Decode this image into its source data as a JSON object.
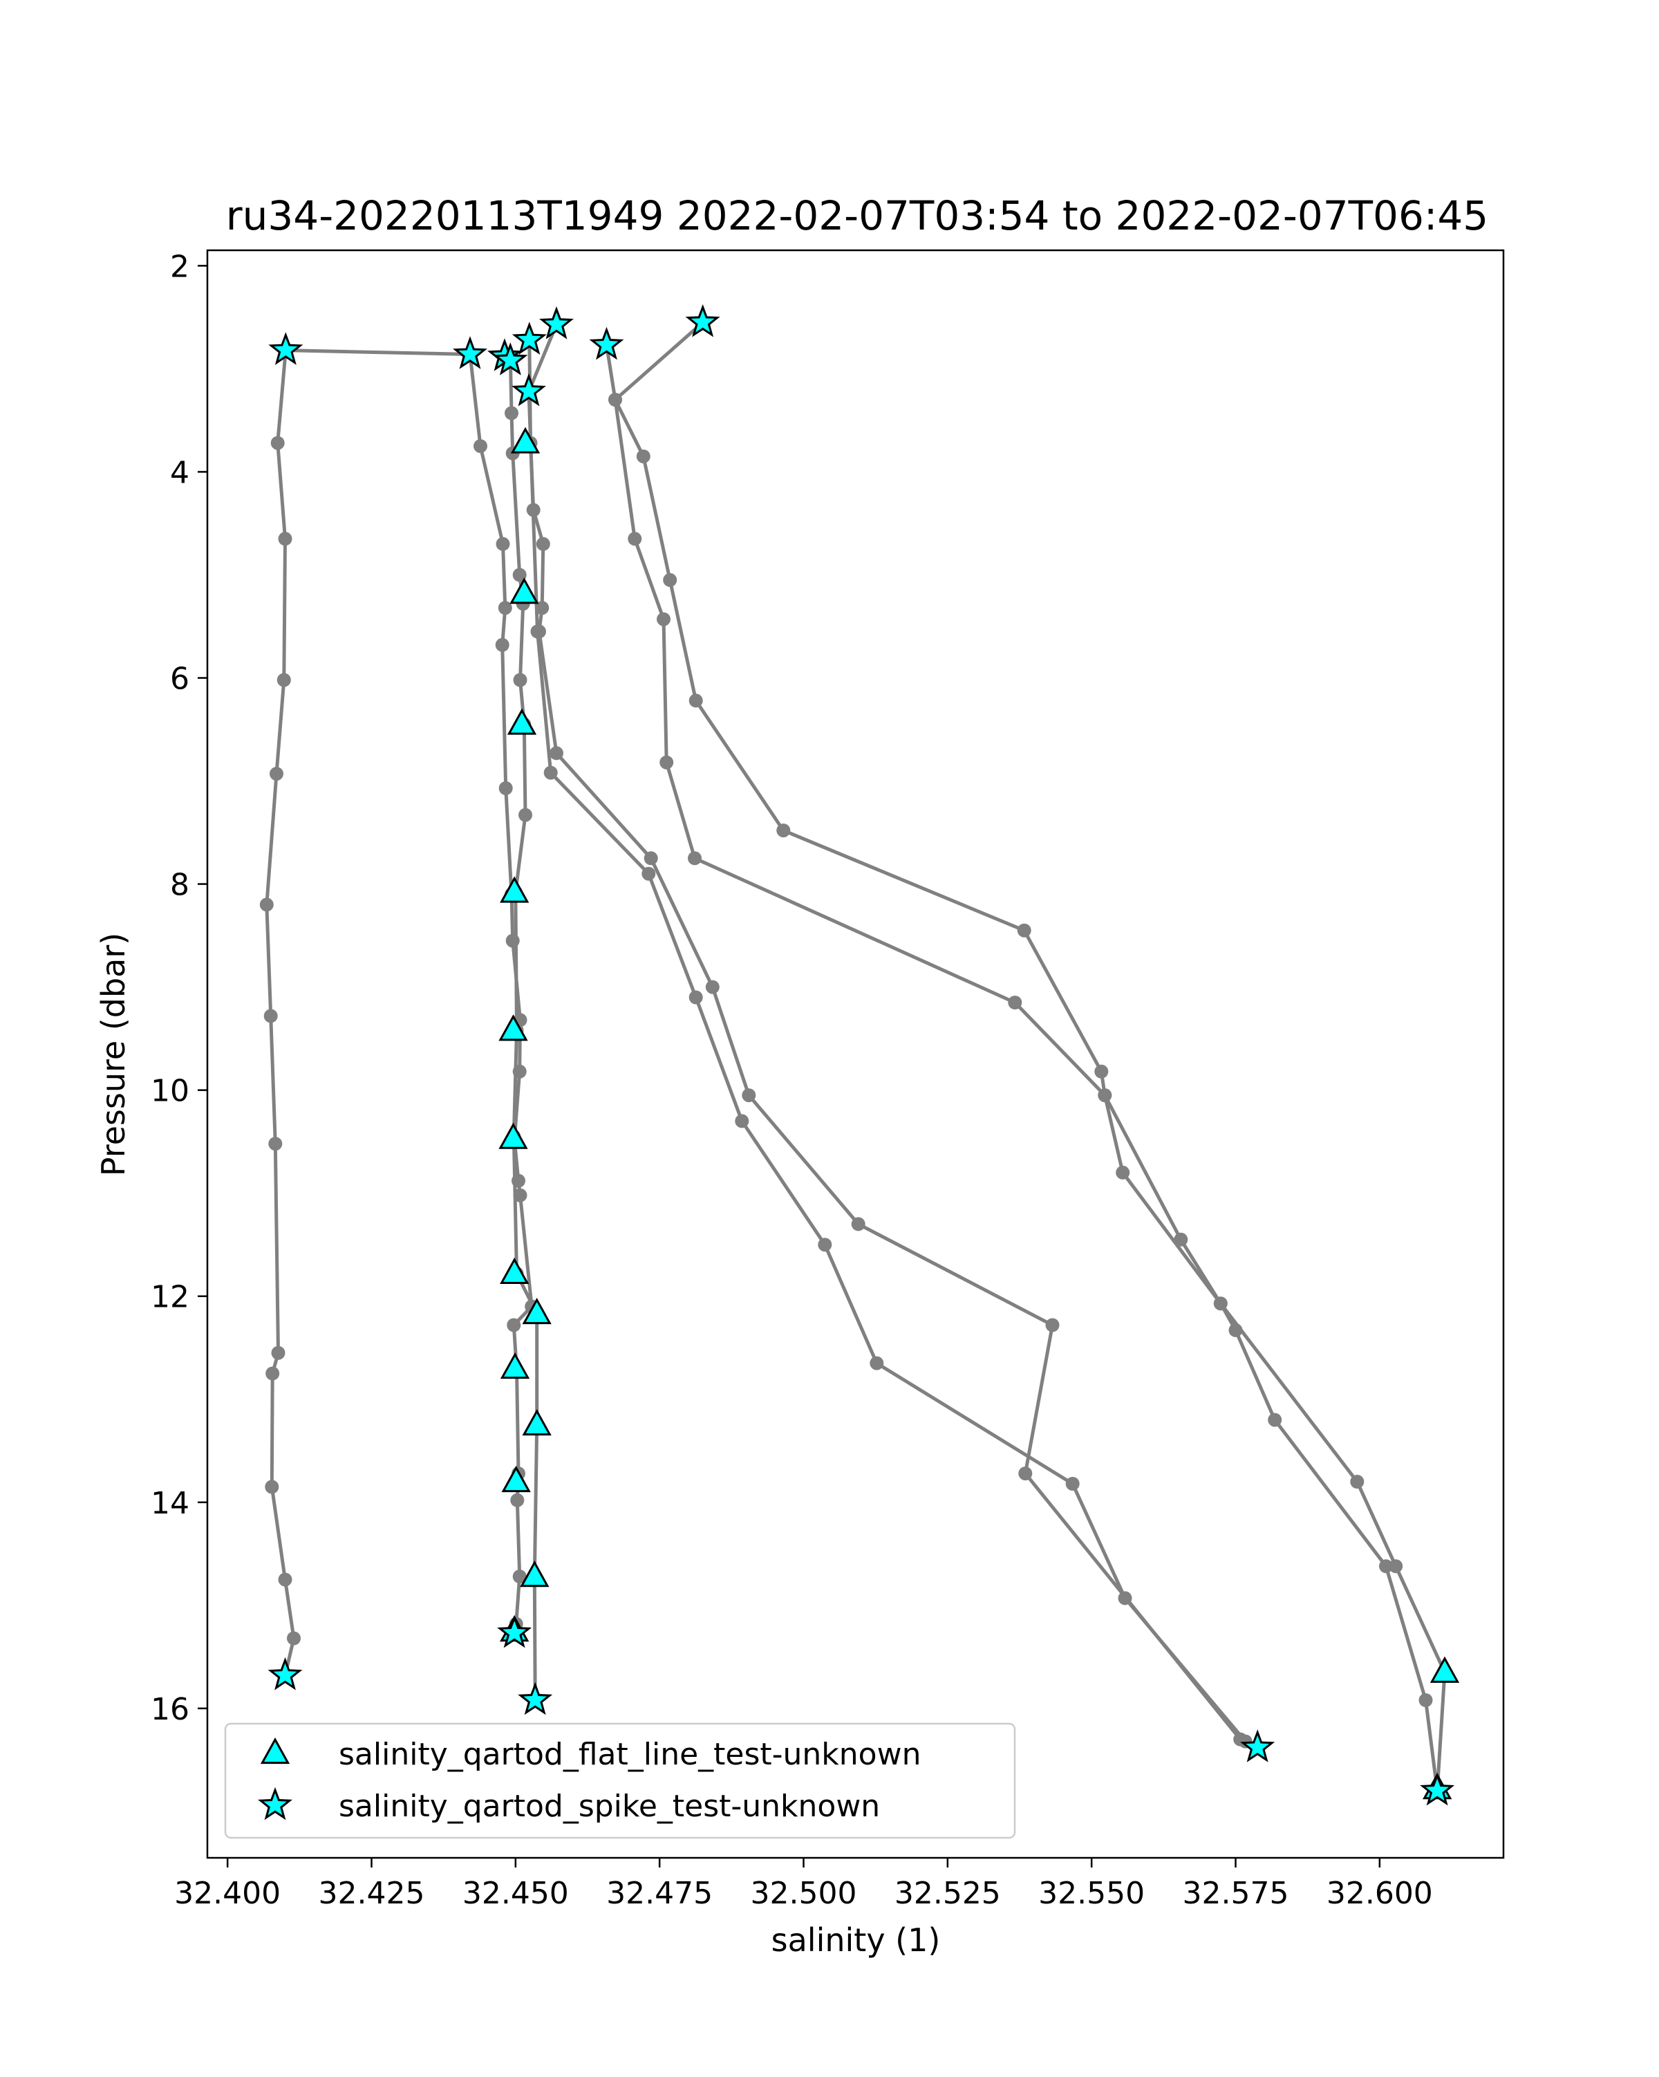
{
  "chart_data": {
    "type": "scatter",
    "title": "ru34-20220113T1949 2022-02-07T03:54 to 2022-02-07T06:45",
    "xlabel": "salinity (1)",
    "ylabel": "Pressure (dbar)",
    "xlim": [
      32.3965,
      32.6215
    ],
    "ylim": [
      17.45,
      1.85
    ],
    "y_inverted": true,
    "grid": false,
    "legend_position": "lower-left",
    "xticks": [
      32.4,
      32.425,
      32.45,
      32.475,
      32.5,
      32.525,
      32.55,
      32.575,
      32.6
    ],
    "xtick_labels": [
      "32.400",
      "32.425",
      "32.450",
      "32.475",
      "32.500",
      "32.525",
      "32.550",
      "32.575",
      "32.600"
    ],
    "yticks": [
      2,
      4,
      6,
      8,
      10,
      12,
      14,
      16
    ],
    "ytick_labels": [
      "2",
      "4",
      "6",
      "8",
      "10",
      "12",
      "14",
      "16"
    ],
    "colors": {
      "profile": "#808080",
      "marker_fill": "#00ffff",
      "marker_edge": "#000000"
    },
    "profiles": [
      {
        "points": [
          [
            32.41,
            15.68
          ],
          [
            32.4115,
            15.32
          ],
          [
            32.41,
            14.75
          ],
          [
            32.4077,
            13.85
          ],
          [
            32.4078,
            12.75
          ],
          [
            32.4088,
            12.55
          ],
          [
            32.4083,
            10.52
          ],
          [
            32.4075,
            9.28
          ],
          [
            32.4068,
            8.2
          ],
          [
            32.4085,
            6.93
          ],
          [
            32.4098,
            6.02
          ],
          [
            32.41,
            4.65
          ],
          [
            32.4087,
            3.72
          ],
          [
            32.4101,
            2.82
          ],
          [
            32.4421,
            2.86
          ],
          [
            32.4439,
            3.75
          ],
          [
            32.4478,
            4.7
          ],
          [
            32.4482,
            5.32
          ],
          [
            32.4477,
            5.68
          ],
          [
            32.4483,
            7.07
          ],
          [
            32.4493,
            8.1
          ],
          [
            32.4495,
            8.55
          ],
          [
            32.4508,
            9.32
          ],
          [
            32.4507,
            9.82
          ],
          [
            32.4498,
            10.48
          ],
          [
            32.4505,
            10.88
          ],
          [
            32.4508,
            11.02
          ],
          [
            32.4528,
            12.1
          ],
          [
            32.4497,
            12.28
          ],
          [
            32.4502,
            12.72
          ],
          [
            32.4505,
            13.72
          ],
          [
            32.4503,
            13.98
          ],
          [
            32.4507,
            14.72
          ],
          [
            32.4501,
            15.18
          ],
          [
            32.4498,
            15.27
          ]
        ]
      },
      {
        "points": [
          [
            32.4491,
            2.88
          ],
          [
            32.4493,
            3.43
          ],
          [
            32.4495,
            3.82
          ],
          [
            32.4507,
            5.0
          ],
          [
            32.4513,
            5.28
          ],
          [
            32.4508,
            6.02
          ],
          [
            32.4515,
            6.45
          ],
          [
            32.4517,
            7.33
          ],
          [
            32.45,
            8.08
          ],
          [
            32.4502,
            9.42
          ],
          [
            32.4497,
            10.45
          ],
          [
            32.4502,
            11.78
          ],
          [
            32.4537,
            12.17
          ],
          [
            32.4537,
            13.25
          ],
          [
            32.4533,
            14.72
          ],
          [
            32.4534,
            15.92
          ]
        ]
      },
      {
        "points": [
          [
            32.4524,
            2.72
          ],
          [
            32.4526,
            3.72
          ],
          [
            32.4531,
            4.37
          ],
          [
            32.4548,
            4.7
          ],
          [
            32.4546,
            5.32
          ],
          [
            32.4541,
            5.55
          ],
          [
            32.4571,
            6.73
          ],
          [
            32.4735,
            7.75
          ],
          [
            32.4842,
            9.0
          ],
          [
            32.4905,
            10.05
          ],
          [
            32.5095,
            11.3
          ],
          [
            32.5432,
            12.28
          ],
          [
            32.5385,
            13.72
          ],
          [
            32.5758,
            16.3
          ],
          [
            32.5788,
            16.38
          ]
        ]
      },
      {
        "points": [
          [
            32.4571,
            2.57
          ],
          [
            32.4523,
            3.22
          ],
          [
            32.4538,
            5.55
          ],
          [
            32.4561,
            6.92
          ],
          [
            32.4731,
            7.9
          ],
          [
            32.4813,
            9.1
          ],
          [
            32.4893,
            10.3
          ],
          [
            32.5037,
            11.5
          ],
          [
            32.5127,
            12.65
          ],
          [
            32.5467,
            13.82
          ],
          [
            32.5558,
            14.93
          ],
          [
            32.5767,
            16.32
          ],
          [
            32.5788,
            16.38
          ]
        ]
      },
      {
        "points": [
          [
            32.4825,
            2.55
          ],
          [
            32.4673,
            3.3
          ],
          [
            32.4707,
            4.65
          ],
          [
            32.4757,
            5.43
          ],
          [
            32.4762,
            6.82
          ],
          [
            32.4811,
            7.75
          ],
          [
            32.5367,
            9.15
          ],
          [
            32.5523,
            10.05
          ],
          [
            32.5554,
            10.8
          ],
          [
            32.5724,
            12.07
          ],
          [
            32.575,
            12.33
          ],
          [
            32.5818,
            13.2
          ],
          [
            32.6011,
            14.62
          ],
          [
            32.608,
            15.92
          ],
          [
            32.61,
            16.8
          ]
        ]
      },
      {
        "points": [
          [
            32.4658,
            2.77
          ],
          [
            32.4673,
            3.3
          ],
          [
            32.4722,
            3.85
          ],
          [
            32.4768,
            5.05
          ],
          [
            32.4813,
            6.22
          ],
          [
            32.4965,
            7.48
          ],
          [
            32.5383,
            8.45
          ],
          [
            32.5517,
            9.82
          ],
          [
            32.5523,
            10.05
          ],
          [
            32.5655,
            11.45
          ],
          [
            32.5724,
            12.07
          ],
          [
            32.5961,
            13.8
          ],
          [
            32.6028,
            14.62
          ],
          [
            32.6113,
            15.65
          ],
          [
            32.61,
            16.8
          ]
        ]
      }
    ],
    "series": [
      {
        "name": "salinity_qartod_flat_line_test-unknown",
        "marker": "triangle",
        "points": [
          [
            32.4517,
            3.72
          ],
          [
            32.4515,
            5.18
          ],
          [
            32.4511,
            6.45
          ],
          [
            32.4498,
            8.08
          ],
          [
            32.4496,
            9.42
          ],
          [
            32.4496,
            10.47
          ],
          [
            32.4498,
            11.78
          ],
          [
            32.4537,
            12.17
          ],
          [
            32.4499,
            12.7
          ],
          [
            32.4537,
            13.25
          ],
          [
            32.4501,
            13.8
          ],
          [
            32.4533,
            14.72
          ],
          [
            32.4498,
            15.25
          ],
          [
            32.6113,
            15.65
          ],
          [
            32.61,
            16.78
          ]
        ]
      },
      {
        "name": "salinity_qartod_spike_test-unknown",
        "marker": "star",
        "points": [
          [
            32.4101,
            2.82
          ],
          [
            32.4421,
            2.86
          ],
          [
            32.4481,
            2.88
          ],
          [
            32.4491,
            2.92
          ],
          [
            32.4524,
            2.72
          ],
          [
            32.4571,
            2.57
          ],
          [
            32.4658,
            2.77
          ],
          [
            32.4825,
            2.55
          ],
          [
            32.4523,
            3.22
          ],
          [
            32.41,
            15.68
          ],
          [
            32.4498,
            15.27
          ],
          [
            32.4534,
            15.92
          ],
          [
            32.5788,
            16.38
          ],
          [
            32.61,
            16.8
          ]
        ]
      }
    ]
  }
}
